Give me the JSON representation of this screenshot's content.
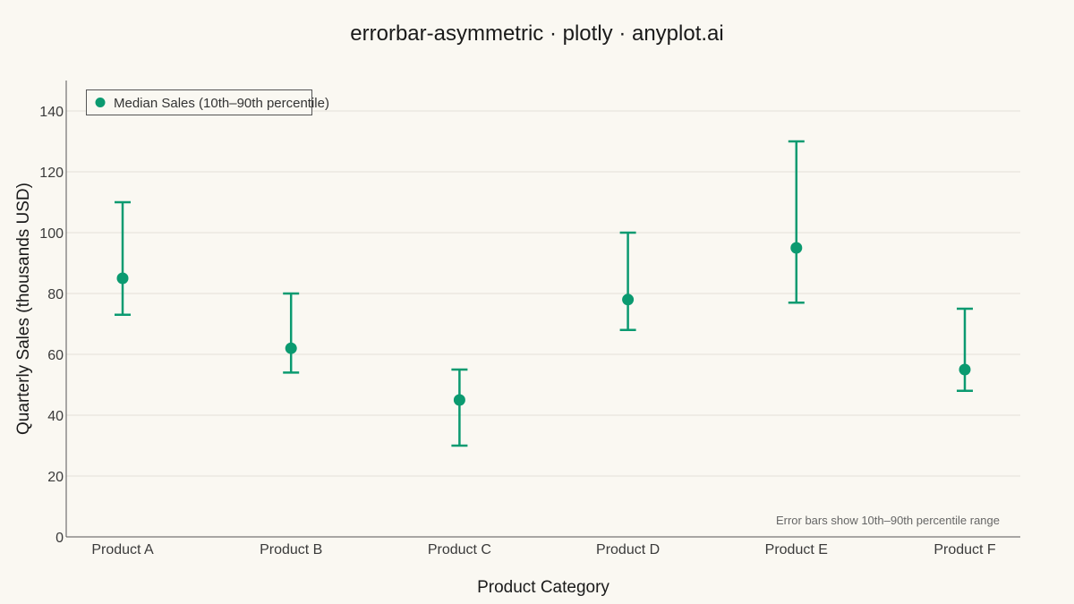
{
  "chart_data": {
    "type": "scatter",
    "title": "errorbar-asymmetric · plotly · anyplot.ai",
    "xlabel": "Product Category",
    "ylabel": "Quarterly Sales (thousands USD)",
    "categories": [
      "Product A",
      "Product B",
      "Product C",
      "Product D",
      "Product E",
      "Product F"
    ],
    "series": [
      {
        "name": "Median Sales (10th–90th percentile)",
        "values": [
          85,
          62,
          45,
          78,
          95,
          55
        ],
        "error_lower": [
          73,
          54,
          30,
          68,
          77,
          48
        ],
        "error_upper": [
          110,
          80,
          55,
          100,
          130,
          75
        ]
      }
    ],
    "ylim": [
      0,
      150
    ],
    "yticks": [
      0,
      20,
      40,
      60,
      80,
      100,
      120,
      140
    ],
    "grid": true,
    "legend_position": "top-left",
    "annotation": "Error bars show 10th–90th percentile range",
    "colors": {
      "series": "#0B9A70",
      "background": "#FAF8F2"
    }
  }
}
